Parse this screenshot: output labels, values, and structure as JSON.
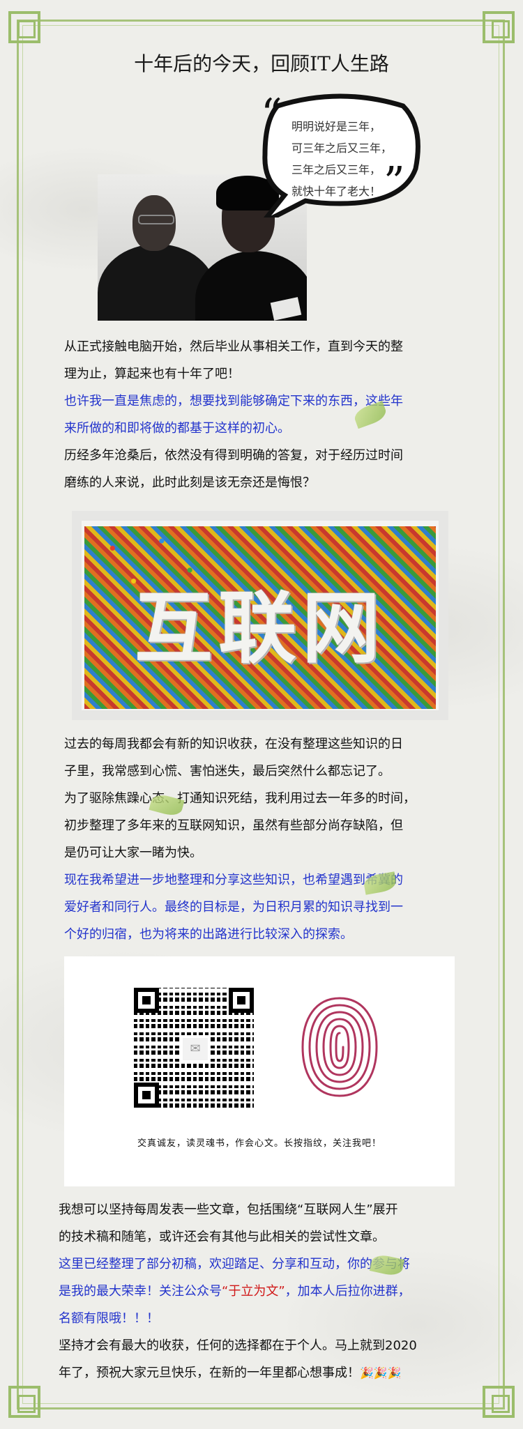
{
  "title": "十年后的今天，回顾IT人生路",
  "bubble_lines": [
    "明明说好是三年，",
    "可三年之后又三年，",
    "三年之后又三年，",
    "就快十年了老大！"
  ],
  "para1": {
    "black": [
      "从正式接触电脑开始，然后毕业从事相关工作，直到今天的整",
      "理为止，算起来也有十年了吧！"
    ],
    "blue": [
      "也许我一直是焦虑的，想要找到能够确定下来的东西，这些年",
      "来所做的和即将做的都基于这样的初心。"
    ],
    "black2": [
      "历经多年沧桑后，依然没有得到明确的答复，对于经历过时间",
      "磨练的人来说，此时此刻是该无奈还是悔恨？"
    ]
  },
  "candy_word": "互联网",
  "para2": {
    "black": [
      "过去的每周我都会有新的知识收获，在没有整理这些知识的日",
      "子里，我常感到心慌、害怕迷失，最后突然什么都忘记了。",
      "为了驱除焦躁心态、打通知识死结，我利用过去一年多的时间，",
      "初步整理了多年来的互联网知识，虽然有些部分尚存缺陷，但",
      "是仍可让大家一睹为快。"
    ],
    "blue": [
      "现在我希望进一步地整理和分享这些知识，也希望遇到希冀的",
      "爱好者和同行人。最终的目标是，为日积月累的知识寻找到一",
      "个好的归宿，也为将来的出路进行比较深入的探索。"
    ]
  },
  "qr_caption": "交真诚友，读灵魂书，作会心文。长按指纹，关注我吧！",
  "para3": {
    "black": [
      "我想可以坚持每周发表一些文章，包括围绕“互联网人生”展开",
      "的技术稿和随笔，或许还会有其他与此相关的尝试性文章。"
    ],
    "blue1": "这里已经整理了部分初稿，欢迎踏足、分享和互动，你的参与将",
    "blue2_pre": "是我的最大荣幸！关注公众号",
    "account_name": "“于立为文”",
    "blue2_post": "，加本人后拉你进群，",
    "blue3": "名额有限哦！！！",
    "black2": [
      "坚持才会有最大的收获，任何的选择都在于个人。马上就到2020",
      "年了，预祝大家元旦快乐，在新的一年里都心想事成！"
    ],
    "emoji": "🎉🎉🎉"
  },
  "colors": {
    "border": "#a6c27a",
    "blue_text": "#2233cc",
    "highlight": "#d01818"
  }
}
